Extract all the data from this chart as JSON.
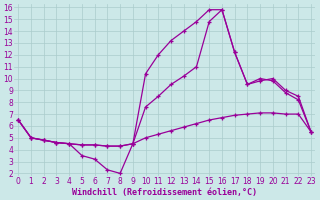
{
  "xlabel": "Windchill (Refroidissement éolien,°C)",
  "background_color": "#cce8e8",
  "grid_color": "#aacccc",
  "line_color": "#990099",
  "xlim": [
    0,
    23
  ],
  "ylim": [
    2,
    16
  ],
  "xticks": [
    0,
    1,
    2,
    3,
    4,
    5,
    6,
    7,
    8,
    9,
    10,
    11,
    12,
    13,
    14,
    15,
    16,
    17,
    18,
    19,
    20,
    21,
    22,
    23
  ],
  "yticks": [
    2,
    3,
    4,
    5,
    6,
    7,
    8,
    9,
    10,
    11,
    12,
    13,
    14,
    15,
    16
  ],
  "line1_x": [
    0,
    1,
    2,
    3,
    4,
    5,
    6,
    7,
    8,
    9,
    10,
    11,
    12,
    13,
    14,
    15,
    16,
    17,
    18,
    19,
    20,
    21,
    22,
    23
  ],
  "line1_y": [
    6.5,
    5.0,
    4.8,
    4.6,
    4.5,
    4.4,
    4.4,
    4.3,
    4.3,
    4.5,
    5.0,
    5.3,
    5.6,
    5.9,
    6.2,
    6.5,
    6.7,
    6.9,
    7.0,
    7.1,
    7.1,
    7.0,
    7.0,
    5.5
  ],
  "line2_x": [
    0,
    1,
    2,
    3,
    4,
    5,
    6,
    7,
    8,
    9,
    10,
    11,
    12,
    13,
    14,
    15,
    16,
    17,
    18,
    19,
    20,
    21,
    22,
    23
  ],
  "line2_y": [
    6.5,
    5.0,
    4.8,
    4.6,
    4.5,
    3.5,
    3.2,
    2.3,
    2.0,
    4.5,
    10.4,
    12.0,
    13.2,
    14.0,
    14.8,
    15.8,
    15.8,
    12.2,
    9.5,
    9.8,
    10.0,
    9.0,
    8.5,
    5.5
  ],
  "line3_x": [
    0,
    1,
    2,
    3,
    4,
    5,
    6,
    7,
    8,
    9,
    10,
    11,
    12,
    13,
    14,
    15,
    16,
    17,
    18,
    19,
    20,
    21,
    22,
    23
  ],
  "line3_y": [
    6.5,
    5.0,
    4.8,
    4.6,
    4.5,
    4.4,
    4.4,
    4.3,
    4.3,
    4.5,
    7.6,
    8.5,
    9.5,
    10.2,
    11.0,
    14.8,
    15.8,
    12.2,
    9.5,
    10.0,
    9.8,
    8.8,
    8.2,
    5.5
  ],
  "marker": "+",
  "markersize": 3.5,
  "linewidth": 0.9,
  "tick_fontsize": 5.5,
  "xlabel_fontsize": 6.0
}
